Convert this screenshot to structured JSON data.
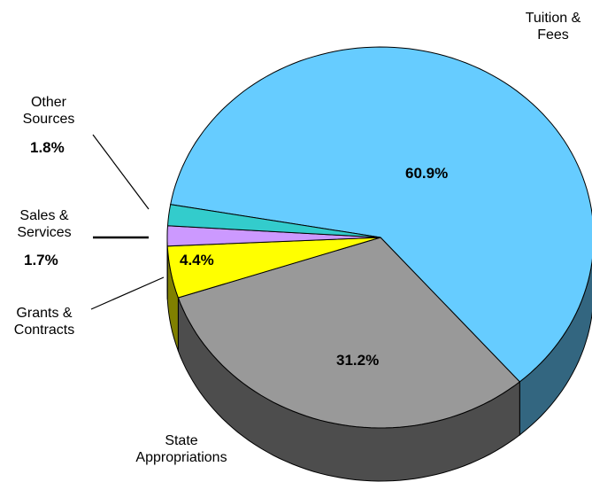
{
  "chart_data": {
    "type": "pie3d",
    "categories": [
      "Tuition & Fees",
      "State Appropriations",
      "Grants & Contracts",
      "Sales & Services",
      "Other Sources"
    ],
    "values": [
      60.9,
      31.2,
      4.4,
      1.7,
      1.8
    ],
    "value_labels": [
      "60.9%",
      "31.2%",
      "4.4%",
      "1.7%",
      "1.8%"
    ],
    "colors": [
      "#66ccff",
      "#999999",
      "#ffff00",
      "#cc99ff",
      "#33cccc"
    ],
    "side_colors": [
      "#336680",
      "#4d4d4d",
      "#808000",
      "#664c80",
      "#1a6666"
    ]
  }
}
